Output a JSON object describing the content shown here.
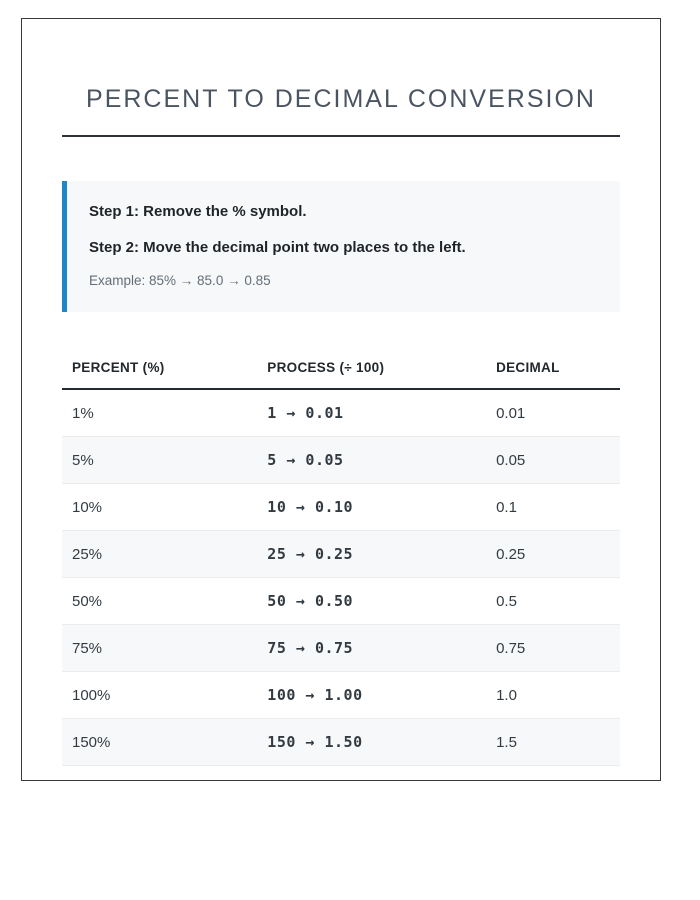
{
  "page": {
    "title": "PERCENT TO DECIMAL CONVERSION"
  },
  "note": {
    "step1": "Step 1: Remove the % symbol.",
    "step2": "Step 2: Move the decimal point two places to the left.",
    "example": "Example: 85% → 85.0 → 0.85"
  },
  "table": {
    "headers": [
      "PERCENT (%)",
      "PROCESS (÷ 100)",
      "DECIMAL"
    ],
    "rows": [
      {
        "percent": "1%",
        "process": "1 → 0.01",
        "decimal": "0.01"
      },
      {
        "percent": "5%",
        "process": "5 → 0.05",
        "decimal": "0.05"
      },
      {
        "percent": "10%",
        "process": "10 → 0.10",
        "decimal": "0.1"
      },
      {
        "percent": "25%",
        "process": "25 → 0.25",
        "decimal": "0.25"
      },
      {
        "percent": "50%",
        "process": "50 → 0.50",
        "decimal": "0.5"
      },
      {
        "percent": "75%",
        "process": "75 → 0.75",
        "decimal": "0.75"
      },
      {
        "percent": "100%",
        "process": "100 → 1.00",
        "decimal": "1.0"
      },
      {
        "percent": "150%",
        "process": "150 → 1.50",
        "decimal": "1.5"
      }
    ]
  },
  "colors": {
    "accent_blue": "#1e87c9",
    "process_text_blue": "#1878be",
    "note_background": "#f7f8f9",
    "frame_border": "#3a3a3a"
  }
}
